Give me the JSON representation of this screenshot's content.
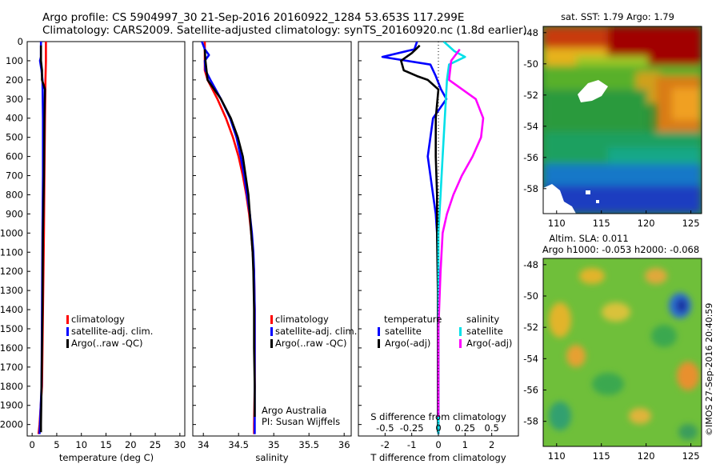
{
  "header": {
    "line1": "Argo profile: CS 5904997_30 21-Sep-2016 20160922_1284 53.653S 117.299E",
    "line2": "Climatology: CARS2009. Satellite-adjusted climatology: synTS_20160920.nc (1.8d earlier)"
  },
  "colors": {
    "climatology": "#ff0000",
    "satellite": "#0000ff",
    "argo": "#000000",
    "sal_satellite": "#00e0e8",
    "sal_argo": "#ff00ff"
  },
  "chart_data": [
    {
      "type": "line",
      "panel": "temperature",
      "xlabel": "temperature (deg C)",
      "xlim": [
        -1,
        31
      ],
      "xticks": [
        0,
        5,
        10,
        15,
        20,
        25,
        30
      ],
      "ylim": [
        2060,
        0
      ],
      "yticks": [
        0,
        100,
        200,
        300,
        400,
        500,
        600,
        700,
        800,
        900,
        1000,
        1100,
        1200,
        1300,
        1400,
        1500,
        1600,
        1700,
        1800,
        1900,
        2000
      ],
      "legend": [
        "climatology",
        "satellite-adj. clim.",
        "Argo(..raw -QC)"
      ],
      "series": [
        {
          "name": "climatology",
          "color": "#ff0000",
          "points": [
            [
              2.8,
              0
            ],
            [
              2.8,
              100
            ],
            [
              2.7,
              200
            ],
            [
              2.6,
              400
            ],
            [
              2.5,
              700
            ],
            [
              2.4,
              1000
            ],
            [
              2.2,
              1400
            ],
            [
              2.0,
              1800
            ],
            [
              1.5,
              2000
            ],
            [
              1.3,
              2050
            ]
          ]
        },
        {
          "name": "satellite-adj. clim.",
          "color": "#0000ff",
          "points": [
            [
              1.8,
              0
            ],
            [
              1.8,
              80
            ],
            [
              1.6,
              100
            ],
            [
              1.9,
              150
            ],
            [
              2.1,
              200
            ],
            [
              2.2,
              400
            ],
            [
              2.2,
              700
            ],
            [
              2.1,
              1000
            ],
            [
              2.0,
              1400
            ],
            [
              1.9,
              1800
            ],
            [
              1.6,
              2000
            ],
            [
              1.5,
              2050
            ]
          ]
        },
        {
          "name": "Argo(..raw -QC)",
          "color": "#000000",
          "points": [
            [
              1.8,
              20
            ],
            [
              1.8,
              100
            ],
            [
              2.0,
              150
            ],
            [
              2.0,
              200
            ],
            [
              2.6,
              250
            ],
            [
              2.5,
              400
            ],
            [
              2.4,
              700
            ],
            [
              2.2,
              1000
            ],
            [
              2.1,
              1400
            ],
            [
              1.9,
              1800
            ],
            [
              1.8,
              2000
            ],
            [
              1.8,
              2040
            ]
          ]
        }
      ]
    },
    {
      "type": "line",
      "panel": "salinity",
      "xlabel": "salinity",
      "xlim": [
        33.85,
        36.1
      ],
      "xticks": [
        34,
        34.5,
        35,
        35.5,
        36
      ],
      "ylim": [
        2060,
        0
      ],
      "legend": [
        "climatology",
        "satellite-adj. clim.",
        "Argo(..raw -QC)"
      ],
      "annotation": [
        "Argo Australia",
        "PI: Susan Wijffels"
      ],
      "series": [
        {
          "name": "climatology",
          "color": "#ff0000",
          "points": [
            [
              34.02,
              0
            ],
            [
              34.02,
              150
            ],
            [
              34.06,
              200
            ],
            [
              34.2,
              300
            ],
            [
              34.32,
              400
            ],
            [
              34.42,
              500
            ],
            [
              34.5,
              600
            ],
            [
              34.56,
              700
            ],
            [
              34.61,
              800
            ],
            [
              34.65,
              900
            ],
            [
              34.68,
              1000
            ],
            [
              34.7,
              1100
            ],
            [
              34.72,
              1200
            ],
            [
              34.73,
              1400
            ],
            [
              34.73,
              1600
            ],
            [
              34.73,
              1800
            ],
            [
              34.72,
              2000
            ],
            [
              34.72,
              2050
            ]
          ]
        },
        {
          "name": "satellite-adj. clim.",
          "color": "#0000ff",
          "points": [
            [
              33.98,
              0
            ],
            [
              34.02,
              40
            ],
            [
              34.08,
              70
            ],
            [
              34.02,
              100
            ],
            [
              34.03,
              150
            ],
            [
              34.1,
              200
            ],
            [
              34.25,
              300
            ],
            [
              34.38,
              400
            ],
            [
              34.47,
              500
            ],
            [
              34.53,
              600
            ],
            [
              34.58,
              700
            ],
            [
              34.62,
              800
            ],
            [
              34.66,
              900
            ],
            [
              34.69,
              1000
            ],
            [
              34.71,
              1100
            ],
            [
              34.72,
              1200
            ],
            [
              34.73,
              1400
            ],
            [
              34.73,
              1600
            ],
            [
              34.73,
              1800
            ],
            [
              34.73,
              2000
            ],
            [
              34.73,
              2050
            ]
          ]
        },
        {
          "name": "Argo(..raw -QC)",
          "color": "#000000",
          "points": [
            [
              34.02,
              40
            ],
            [
              34.03,
              100
            ],
            [
              34.06,
              200
            ],
            [
              34.25,
              300
            ],
            [
              34.39,
              400
            ],
            [
              34.49,
              500
            ],
            [
              34.56,
              600
            ],
            [
              34.6,
              700
            ],
            [
              34.64,
              800
            ],
            [
              34.66,
              900
            ],
            [
              34.68,
              1000
            ],
            [
              34.7,
              1100
            ],
            [
              34.71,
              1200
            ],
            [
              34.72,
              1400
            ],
            [
              34.72,
              1600
            ],
            [
              34.73,
              1800
            ],
            [
              34.73,
              1960
            ]
          ]
        }
      ]
    },
    {
      "type": "line",
      "panel": "difference",
      "xlabel": "T difference from climatology",
      "xlabel_top": "S difference from climatology",
      "xlim": [
        -3,
        3
      ],
      "xticks": [
        -2,
        -1,
        0,
        1,
        2
      ],
      "sticks": [
        -0.5,
        -0.25,
        0,
        0.25,
        0.5
      ],
      "ylim": [
        2060,
        0
      ],
      "legend_groups": [
        {
          "heading": "temperature",
          "items": [
            "satellite",
            "Argo(-adj)"
          ]
        },
        {
          "heading": "salinity",
          "items": [
            "satellite",
            "Argo(-adj)"
          ]
        }
      ],
      "series": [
        {
          "name": "temperature satellite",
          "color": "#0000ff",
          "points": [
            [
              -0.8,
              0
            ],
            [
              -0.9,
              40
            ],
            [
              -2.1,
              80
            ],
            [
              -0.3,
              120
            ],
            [
              -0.1,
              180
            ],
            [
              0.1,
              250
            ],
            [
              0.3,
              300
            ],
            [
              -0.2,
              400
            ],
            [
              -0.3,
              500
            ],
            [
              -0.4,
              600
            ],
            [
              -0.3,
              700
            ],
            [
              -0.2,
              800
            ],
            [
              -0.1,
              900
            ],
            [
              -0.05,
              1000
            ],
            [
              0,
              1200
            ],
            [
              0,
              1500
            ],
            [
              0,
              1800
            ],
            [
              0,
              2050
            ]
          ]
        },
        {
          "name": "temperature Argo(-adj)",
          "color": "#000000",
          "points": [
            [
              -0.7,
              20
            ],
            [
              -1.0,
              60
            ],
            [
              -1.4,
              100
            ],
            [
              -1.3,
              150
            ],
            [
              -0.8,
              180
            ],
            [
              -0.4,
              200
            ],
            [
              0,
              250
            ],
            [
              -0.1,
              400
            ],
            [
              -0.1,
              600
            ],
            [
              -0.05,
              800
            ],
            [
              -0.05,
              1000
            ],
            [
              -0.02,
              1300
            ],
            [
              -0.02,
              1600
            ],
            [
              -0.02,
              2040
            ]
          ]
        },
        {
          "name": "salinity satellite",
          "color": "#00e0e8",
          "points": [
            [
              0.05,
              0
            ],
            [
              0.15,
              50
            ],
            [
              0.25,
              80
            ],
            [
              0.1,
              120
            ],
            [
              0.08,
              200
            ],
            [
              0.06,
              400
            ],
            [
              0.04,
              600
            ],
            [
              0.02,
              800
            ],
            [
              0,
              1000
            ],
            [
              0,
              1400
            ],
            [
              0,
              1800
            ],
            [
              0,
              2050
            ]
          ]
        },
        {
          "name": "salinity Argo(-adj)",
          "color": "#ff00ff",
          "points": [
            [
              0.2,
              40
            ],
            [
              0.12,
              100
            ],
            [
              0.1,
              200
            ],
            [
              0.35,
              300
            ],
            [
              0.42,
              400
            ],
            [
              0.4,
              500
            ],
            [
              0.32,
              600
            ],
            [
              0.22,
              700
            ],
            [
              0.14,
              800
            ],
            [
              0.08,
              900
            ],
            [
              0.04,
              1000
            ],
            [
              0.02,
              1200
            ],
            [
              0,
              1500
            ],
            [
              0,
              1960
            ]
          ]
        }
      ]
    },
    {
      "type": "heatmap",
      "panel": "sst_map",
      "title": "sat. SST: 1.79 Argo: 1.79",
      "xlim": [
        108.5,
        126.2
      ],
      "ylim": [
        -59.6,
        -47.6
      ],
      "xticks": [
        110,
        115,
        120,
        125
      ],
      "yticks": [
        -48,
        -50,
        -52,
        -54,
        -56,
        -58
      ]
    },
    {
      "type": "heatmap",
      "panel": "sla_map",
      "title": [
        "Altim. SLA: 0.011",
        "Argo h1000: -0.053 h2000: -0.068"
      ],
      "xlim": [
        108.5,
        126.2
      ],
      "ylim": [
        -59.6,
        -47.6
      ],
      "xticks": [
        110,
        115,
        120,
        125
      ],
      "yticks": [
        -48,
        -50,
        -52,
        -54,
        -56,
        -58
      ]
    }
  ],
  "credit": "©IMOS 27-Sep-2016 20:40:59"
}
